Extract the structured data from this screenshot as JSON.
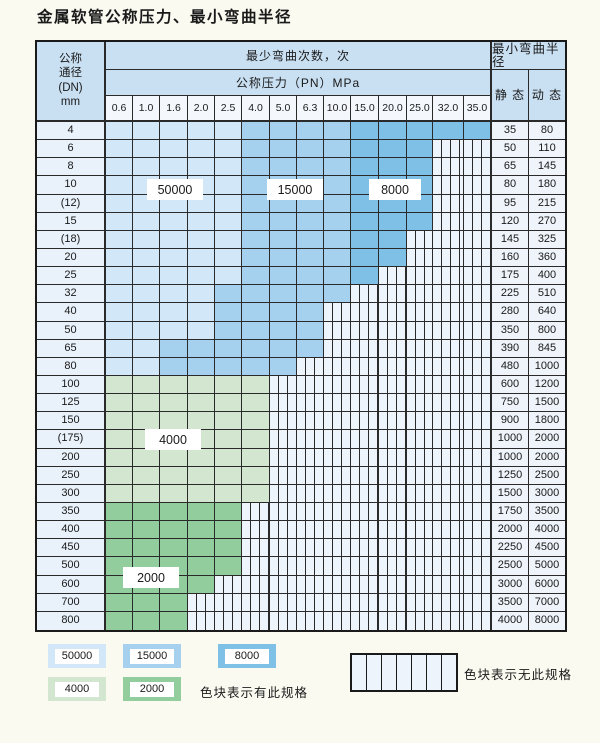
{
  "title": "金属软管公称压力、最小弯曲半径",
  "colors": {
    "cycles_50000": "#d2e7f7",
    "cycles_15000": "#a5d1ee",
    "cycles_8000": "#7fc1e6",
    "cycles_4000": "#d3e7d0",
    "cycles_2000": "#92cd9e",
    "no_spec_bg": "#eef4fb",
    "header_bg": "#c9dff2",
    "label_col_bg": "#e9f1fa",
    "grid_line": "#2a2a2a"
  },
  "header": {
    "dn_lines": [
      "公称",
      "通径",
      "(DN)",
      "mm"
    ],
    "cycles_label": "最少弯曲次数，次",
    "pn_label": "公称压力（PN）MPa",
    "radius_label": "最小弯曲半径",
    "static_label": "静 态",
    "dynamic_label": "动 态"
  },
  "chart_data": {
    "type": "table",
    "title": "金属软管公称压力、最小弯曲半径",
    "pn_columns_mpa": [
      "0.6",
      "1.0",
      "1.6",
      "2.0",
      "2.5",
      "4.0",
      "5.0",
      "6.3",
      "10.0",
      "15.0",
      "20.0",
      "25.0",
      "32.0",
      "35.0"
    ],
    "cell_codes": {
      "b50": "最少弯曲次数 50000 次",
      "b15": "最少弯曲次数 15000 次",
      "b8": "最少弯曲次数 8000 次",
      "g4": "最少弯曲次数 4000 次",
      "g2": "最少弯曲次数 2000 次",
      "x": "无此规格"
    },
    "rows": [
      {
        "dn": "4",
        "cells": [
          "b50",
          "b50",
          "b50",
          "b50",
          "b50",
          "b15",
          "b15",
          "b15",
          "b15",
          "b8",
          "b8",
          "b8",
          "b8",
          "b8"
        ],
        "static": "35",
        "dynamic": "80"
      },
      {
        "dn": "6",
        "cells": [
          "b50",
          "b50",
          "b50",
          "b50",
          "b50",
          "b15",
          "b15",
          "b15",
          "b15",
          "b8",
          "b8",
          "b8",
          "x",
          "x"
        ],
        "static": "50",
        "dynamic": "110"
      },
      {
        "dn": "8",
        "cells": [
          "b50",
          "b50",
          "b50",
          "b50",
          "b50",
          "b15",
          "b15",
          "b15",
          "b15",
          "b8",
          "b8",
          "b8",
          "x",
          "x"
        ],
        "static": "65",
        "dynamic": "145"
      },
      {
        "dn": "10",
        "cells": [
          "b50",
          "b50",
          "b50",
          "b50",
          "b50",
          "b15",
          "b15",
          "b15",
          "b15",
          "b8",
          "b8",
          "b8",
          "x",
          "x"
        ],
        "static": "80",
        "dynamic": "180"
      },
      {
        "dn": "(12)",
        "cells": [
          "b50",
          "b50",
          "b50",
          "b50",
          "b50",
          "b15",
          "b15",
          "b15",
          "b15",
          "b8",
          "b8",
          "b8",
          "x",
          "x"
        ],
        "static": "95",
        "dynamic": "215"
      },
      {
        "dn": "15",
        "cells": [
          "b50",
          "b50",
          "b50",
          "b50",
          "b50",
          "b15",
          "b15",
          "b15",
          "b15",
          "b8",
          "b8",
          "b8",
          "x",
          "x"
        ],
        "static": "120",
        "dynamic": "270"
      },
      {
        "dn": "(18)",
        "cells": [
          "b50",
          "b50",
          "b50",
          "b50",
          "b50",
          "b15",
          "b15",
          "b15",
          "b15",
          "b8",
          "b8",
          "x",
          "x",
          "x"
        ],
        "static": "145",
        "dynamic": "325"
      },
      {
        "dn": "20",
        "cells": [
          "b50",
          "b50",
          "b50",
          "b50",
          "b50",
          "b15",
          "b15",
          "b15",
          "b15",
          "b8",
          "b8",
          "x",
          "x",
          "x"
        ],
        "static": "160",
        "dynamic": "360"
      },
      {
        "dn": "25",
        "cells": [
          "b50",
          "b50",
          "b50",
          "b50",
          "b50",
          "b15",
          "b15",
          "b15",
          "b15",
          "b8",
          "x",
          "x",
          "x",
          "x"
        ],
        "static": "175",
        "dynamic": "400"
      },
      {
        "dn": "32",
        "cells": [
          "b50",
          "b50",
          "b50",
          "b50",
          "b15",
          "b15",
          "b15",
          "b15",
          "b15",
          "x",
          "x",
          "x",
          "x",
          "x"
        ],
        "static": "225",
        "dynamic": "510"
      },
      {
        "dn": "40",
        "cells": [
          "b50",
          "b50",
          "b50",
          "b50",
          "b15",
          "b15",
          "b15",
          "b15",
          "x",
          "x",
          "x",
          "x",
          "x",
          "x"
        ],
        "static": "280",
        "dynamic": "640"
      },
      {
        "dn": "50",
        "cells": [
          "b50",
          "b50",
          "b50",
          "b50",
          "b15",
          "b15",
          "b15",
          "b15",
          "x",
          "x",
          "x",
          "x",
          "x",
          "x"
        ],
        "static": "350",
        "dynamic": "800"
      },
      {
        "dn": "65",
        "cells": [
          "b50",
          "b50",
          "b15",
          "b15",
          "b15",
          "b15",
          "b15",
          "b15",
          "x",
          "x",
          "x",
          "x",
          "x",
          "x"
        ],
        "static": "390",
        "dynamic": "845"
      },
      {
        "dn": "80",
        "cells": [
          "b50",
          "b50",
          "b15",
          "b15",
          "b15",
          "b15",
          "b15",
          "x",
          "x",
          "x",
          "x",
          "x",
          "x",
          "x"
        ],
        "static": "480",
        "dynamic": "1000"
      },
      {
        "dn": "100",
        "cells": [
          "g4",
          "g4",
          "g4",
          "g4",
          "g4",
          "g4",
          "x",
          "x",
          "x",
          "x",
          "x",
          "x",
          "x",
          "x"
        ],
        "static": "600",
        "dynamic": "1200"
      },
      {
        "dn": "125",
        "cells": [
          "g4",
          "g4",
          "g4",
          "g4",
          "g4",
          "g4",
          "x",
          "x",
          "x",
          "x",
          "x",
          "x",
          "x",
          "x"
        ],
        "static": "750",
        "dynamic": "1500"
      },
      {
        "dn": "150",
        "cells": [
          "g4",
          "g4",
          "g4",
          "g4",
          "g4",
          "g4",
          "x",
          "x",
          "x",
          "x",
          "x",
          "x",
          "x",
          "x"
        ],
        "static": "900",
        "dynamic": "1800"
      },
      {
        "dn": "(175)",
        "cells": [
          "g4",
          "g4",
          "g4",
          "g4",
          "g4",
          "g4",
          "x",
          "x",
          "x",
          "x",
          "x",
          "x",
          "x",
          "x"
        ],
        "static": "1000",
        "dynamic": "2000"
      },
      {
        "dn": "200",
        "cells": [
          "g4",
          "g4",
          "g4",
          "g4",
          "g4",
          "g4",
          "x",
          "x",
          "x",
          "x",
          "x",
          "x",
          "x",
          "x"
        ],
        "static": "1000",
        "dynamic": "2000"
      },
      {
        "dn": "250",
        "cells": [
          "g4",
          "g4",
          "g4",
          "g4",
          "g4",
          "g4",
          "x",
          "x",
          "x",
          "x",
          "x",
          "x",
          "x",
          "x"
        ],
        "static": "1250",
        "dynamic": "2500"
      },
      {
        "dn": "300",
        "cells": [
          "g4",
          "g4",
          "g4",
          "g4",
          "g4",
          "g4",
          "x",
          "x",
          "x",
          "x",
          "x",
          "x",
          "x",
          "x"
        ],
        "static": "1500",
        "dynamic": "3000"
      },
      {
        "dn": "350",
        "cells": [
          "g2",
          "g2",
          "g2",
          "g2",
          "g2",
          "x",
          "x",
          "x",
          "x",
          "x",
          "x",
          "x",
          "x",
          "x"
        ],
        "static": "1750",
        "dynamic": "3500"
      },
      {
        "dn": "400",
        "cells": [
          "g2",
          "g2",
          "g2",
          "g2",
          "g2",
          "x",
          "x",
          "x",
          "x",
          "x",
          "x",
          "x",
          "x",
          "x"
        ],
        "static": "2000",
        "dynamic": "4000"
      },
      {
        "dn": "450",
        "cells": [
          "g2",
          "g2",
          "g2",
          "g2",
          "g2",
          "x",
          "x",
          "x",
          "x",
          "x",
          "x",
          "x",
          "x",
          "x"
        ],
        "static": "2250",
        "dynamic": "4500"
      },
      {
        "dn": "500",
        "cells": [
          "g2",
          "g2",
          "g2",
          "g2",
          "g2",
          "x",
          "x",
          "x",
          "x",
          "x",
          "x",
          "x",
          "x",
          "x"
        ],
        "static": "2500",
        "dynamic": "5000"
      },
      {
        "dn": "600",
        "cells": [
          "g2",
          "g2",
          "g2",
          "g2",
          "x",
          "x",
          "x",
          "x",
          "x",
          "x",
          "x",
          "x",
          "x",
          "x"
        ],
        "static": "3000",
        "dynamic": "6000"
      },
      {
        "dn": "700",
        "cells": [
          "g2",
          "g2",
          "g2",
          "x",
          "x",
          "x",
          "x",
          "x",
          "x",
          "x",
          "x",
          "x",
          "x",
          "x"
        ],
        "static": "3500",
        "dynamic": "7000"
      },
      {
        "dn": "800",
        "cells": [
          "g2",
          "g2",
          "g2",
          "x",
          "x",
          "x",
          "x",
          "x",
          "x",
          "x",
          "x",
          "x",
          "x",
          "x"
        ],
        "static": "4000",
        "dynamic": "8000"
      }
    ]
  },
  "overlays": [
    {
      "label": "50000"
    },
    {
      "label": "15000"
    },
    {
      "label": "8000"
    },
    {
      "label": "4000"
    },
    {
      "label": "2000"
    }
  ],
  "legend": {
    "items": [
      {
        "label": "50000",
        "color": "#d2e7f7"
      },
      {
        "label": "15000",
        "color": "#a5d1ee"
      },
      {
        "label": "8000",
        "color": "#7fc1e6"
      },
      {
        "label": "4000",
        "color": "#d3e7d0"
      },
      {
        "label": "2000",
        "color": "#92cd9e"
      }
    ],
    "has_spec_text": "色块表示有此规格",
    "no_spec_text": "色块表示无此规格"
  }
}
